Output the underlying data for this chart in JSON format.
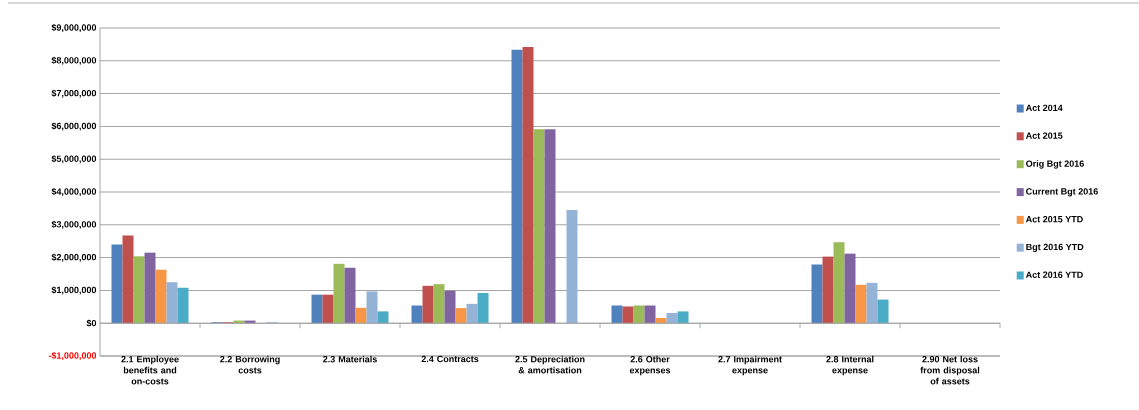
{
  "chart_data": {
    "type": "bar",
    "categories": [
      "2.1 Employee benefits and on-costs",
      "2.2 Borrowing costs",
      "2.3 Materials",
      "2.4 Contracts",
      "2.5 Depreciation & amortisation",
      "2.6 Other expenses",
      "2.7 Impairment expense",
      "2.8 Internal expense",
      "2.90 Net loss from disposal of assets"
    ],
    "series": [
      {
        "name": "Act 2014",
        "color": "#4f81bd",
        "values": [
          2400000,
          30000,
          870000,
          540000,
          8340000,
          540000,
          0,
          1790000,
          0
        ]
      },
      {
        "name": "Act 2015",
        "color": "#c0504d",
        "values": [
          2670000,
          30000,
          870000,
          1140000,
          8420000,
          510000,
          0,
          2030000,
          0
        ]
      },
      {
        "name": "Orig Bgt 2016",
        "color": "#9bbb59",
        "values": [
          2040000,
          80000,
          1810000,
          1190000,
          5910000,
          540000,
          0,
          2470000,
          0
        ]
      },
      {
        "name": "Current Bgt 2016",
        "color": "#8064a2",
        "values": [
          2150000,
          80000,
          1690000,
          990000,
          5910000,
          540000,
          0,
          2120000,
          0
        ]
      },
      {
        "name": "Act 2015 YTD",
        "color": "#f79646",
        "values": [
          1630000,
          0,
          470000,
          460000,
          0,
          160000,
          0,
          1170000,
          0
        ]
      },
      {
        "name": "Bgt 2016 YTD",
        "color": "#95b3d7",
        "values": [
          1250000,
          30000,
          970000,
          590000,
          3450000,
          310000,
          0,
          1230000,
          0
        ]
      },
      {
        "name": "Act 2016 YTD",
        "color": "#4bacc6",
        "values": [
          1080000,
          0,
          360000,
          920000,
          0,
          360000,
          0,
          720000,
          0
        ]
      }
    ],
    "ylim": [
      -1000000,
      9000000
    ],
    "yticks": [
      {
        "value": -1000000,
        "label": "-$1,000,000"
      },
      {
        "value": 0,
        "label": "$0"
      },
      {
        "value": 1000000,
        "label": "$1,000,000"
      },
      {
        "value": 2000000,
        "label": "$2,000,000"
      },
      {
        "value": 3000000,
        "label": "$3,000,000"
      },
      {
        "value": 4000000,
        "label": "$4,000,000"
      },
      {
        "value": 5000000,
        "label": "$5,000,000"
      },
      {
        "value": 6000000,
        "label": "$6,000,000"
      },
      {
        "value": 7000000,
        "label": "$7,000,000"
      },
      {
        "value": 8000000,
        "label": "$8,000,000"
      },
      {
        "value": 9000000,
        "label": "$9,000,000"
      }
    ],
    "grid": "y",
    "legend": "right"
  }
}
